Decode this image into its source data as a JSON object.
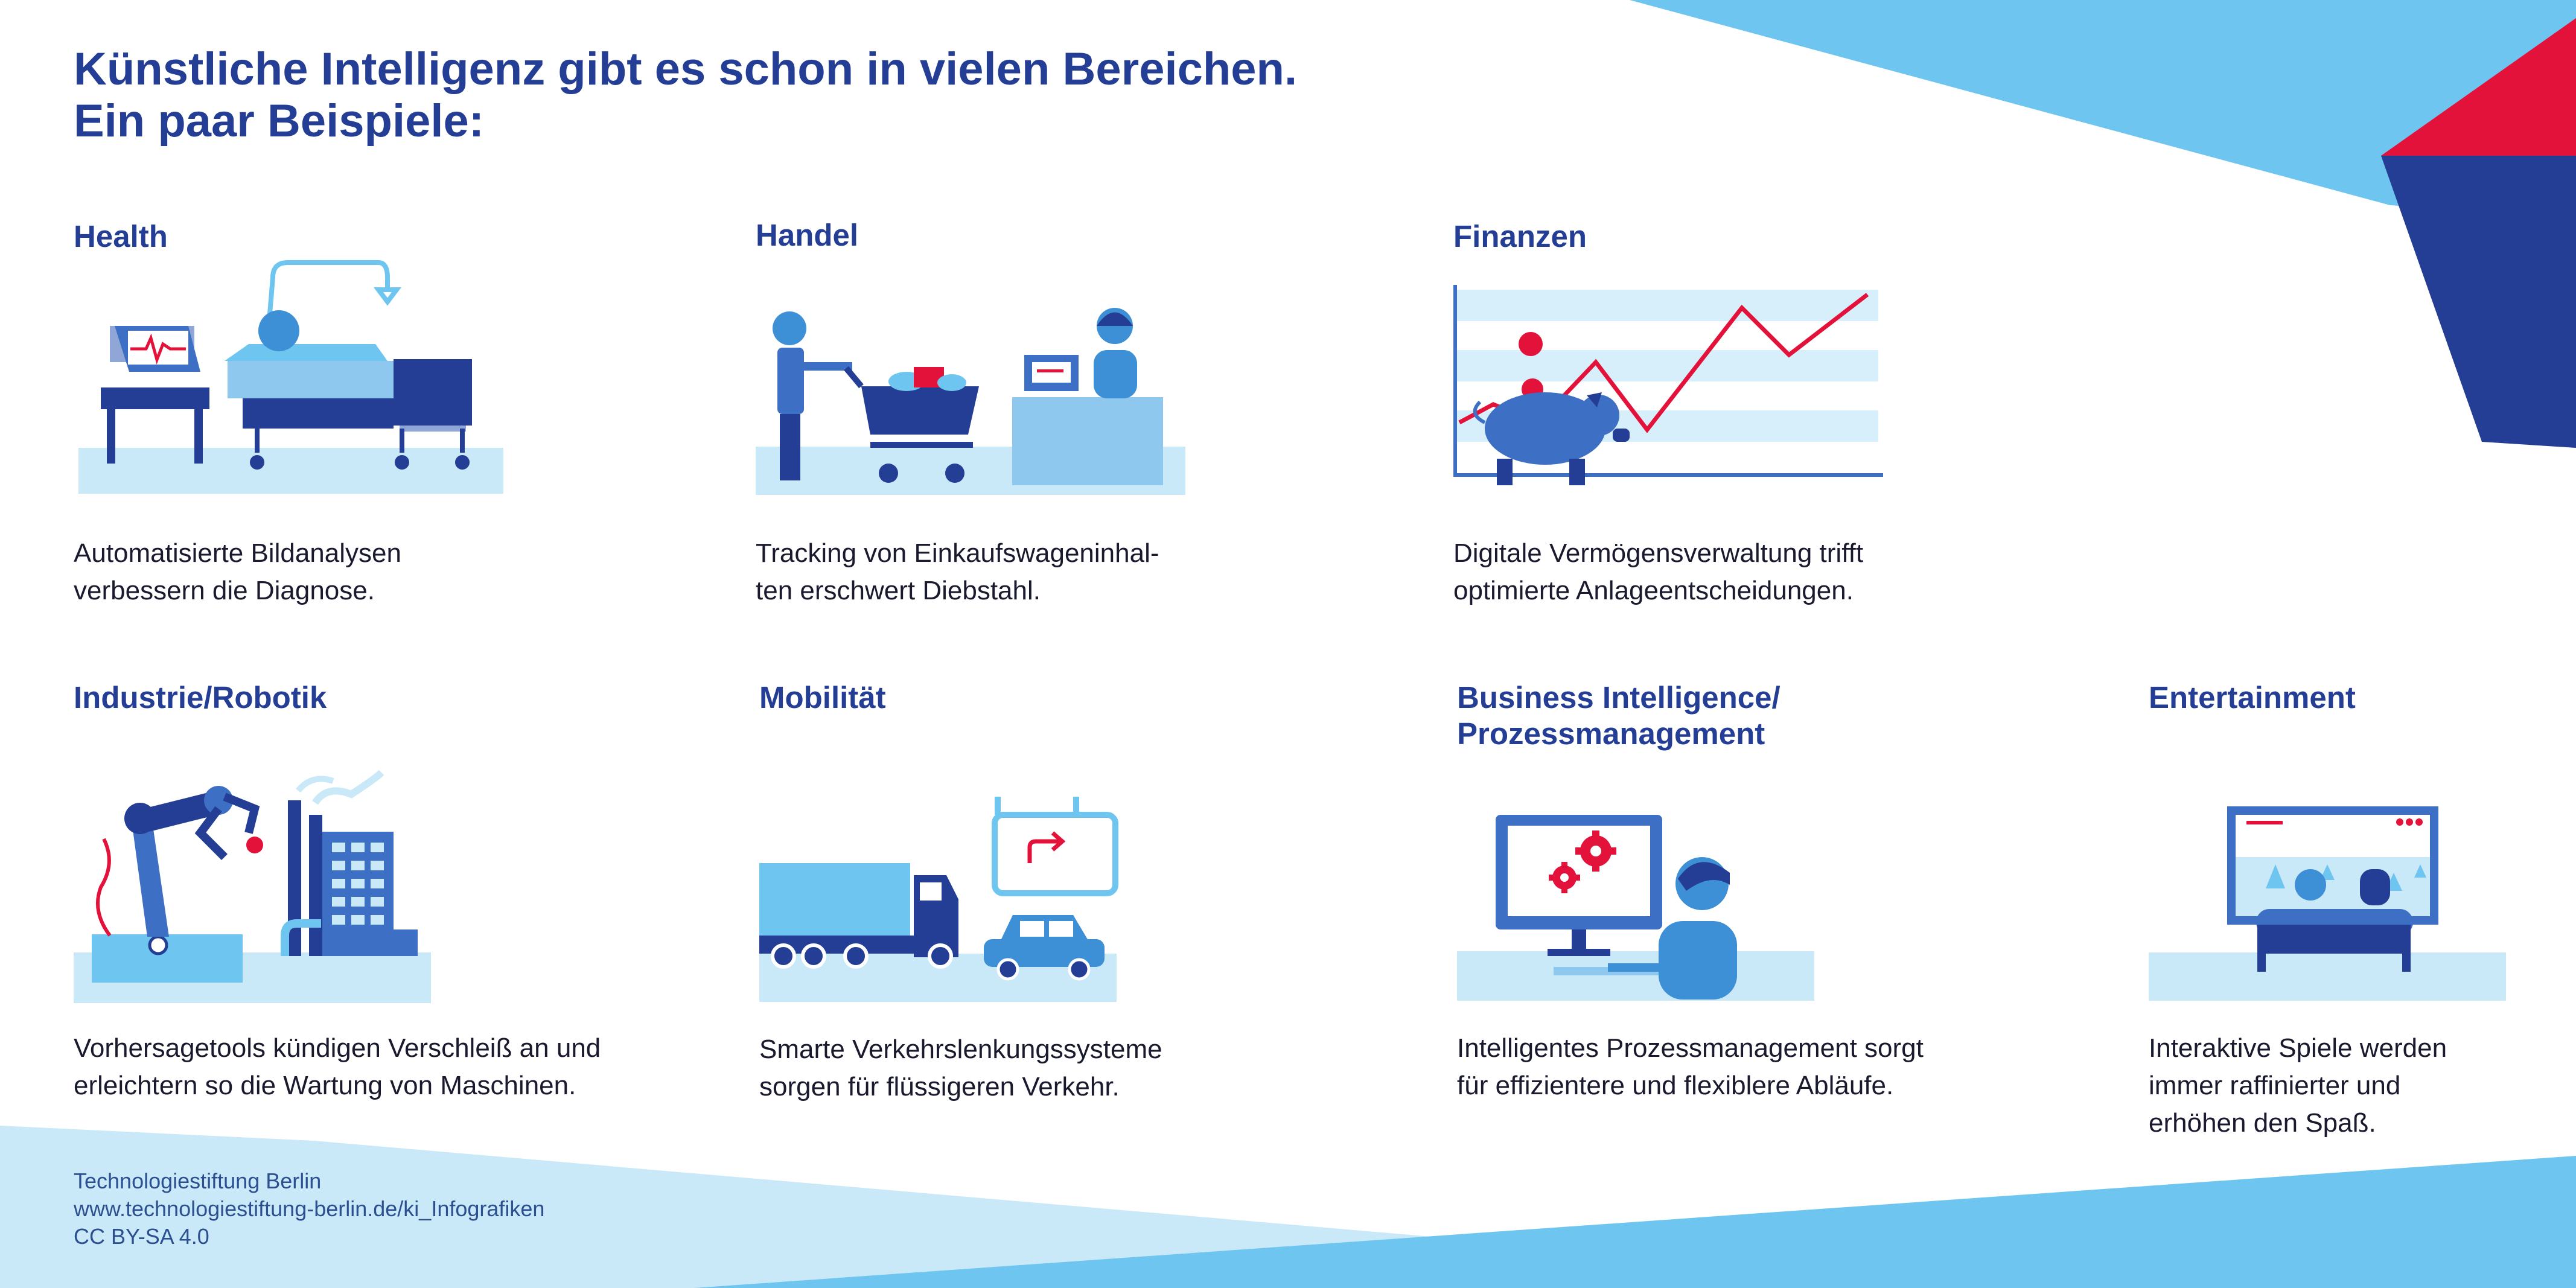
{
  "title_line1": "Künstliche Intelligenz gibt es schon in vielen Bereichen.",
  "title_line2": "Ein paar Beispiele:",
  "colors": {
    "navy": "#243d95",
    "mid_blue": "#3d6fc4",
    "light_blue": "#6ec6f0",
    "pale_blue": "#c9e8f8",
    "red": "#e3123a"
  },
  "sections": [
    {
      "title": "Health",
      "desc1": "Automatisierte Bildanalysen",
      "desc2": "verbessern die Diagnose."
    },
    {
      "title": "Handel",
      "desc1": "Tracking von Einkaufswageninhal-",
      "desc2": "ten erschwert Diebstahl."
    },
    {
      "title": "Finanzen",
      "desc1": "Digitale Vermögensverwaltung trifft",
      "desc2": "optimierte Anlageentscheidungen."
    },
    {
      "title": "Industrie/Robotik",
      "desc1": "Vorhersagetools kündigen Verschleiß an und",
      "desc2": "erleichtern so die Wartung von Maschinen."
    },
    {
      "title": "Mobilität",
      "desc1": "Smarte Verkehrslenkungssysteme",
      "desc2": "sorgen für flüssigeren Verkehr."
    },
    {
      "title_line1": "Business Intelligence/",
      "title_line2": "Prozessmanagement",
      "desc1": "Intelligentes Prozessmanagement sorgt",
      "desc2": "für effizientere und flexiblere Abläufe."
    },
    {
      "title": "Entertainment",
      "desc1": "Interaktive Spiele werden",
      "desc2": "immer raffinierter und",
      "desc3": "erhöhen den Spaß."
    }
  ],
  "footer": {
    "line1": "Technologiestiftung Berlin",
    "line2": "www.technologiestiftung-berlin.de/ki_Infografiken",
    "line3": "CC BY-SA 4.0"
  }
}
